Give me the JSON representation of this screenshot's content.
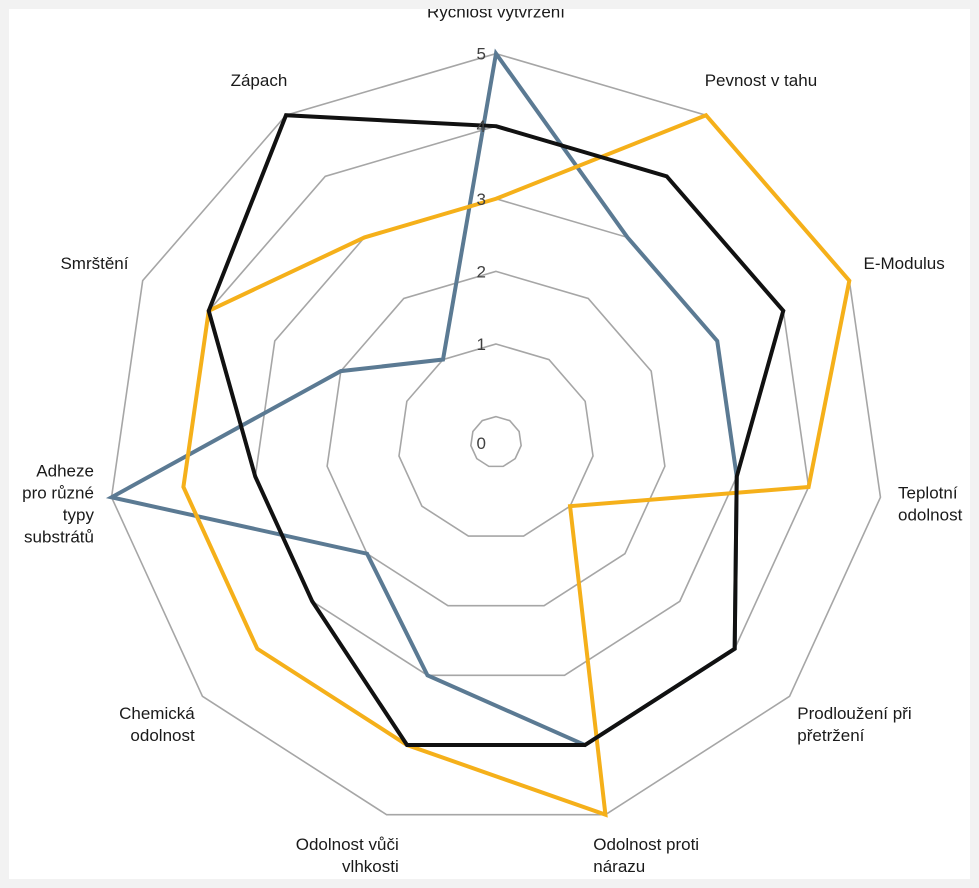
{
  "chart_data": {
    "type": "radar",
    "title": "",
    "axes": [
      "Rychlost vytvrzení",
      "Pevnost v tahu",
      "E-Modulus",
      "Teplotní odolnost",
      "Prodloužení při přetržení",
      "Odolnost proti nárazu",
      "Odolnost vůči vlhkosti",
      "Chemická odolnost",
      "Adheze pro různé typy substrátů",
      "Smrštění",
      "Zápach"
    ],
    "axis_label_lines": [
      [
        "Rychlost vytvrzení"
      ],
      [
        "Pevnost v tahu"
      ],
      [
        "E-Modulus"
      ],
      [
        "Teplotní",
        "odolnost"
      ],
      [
        "Prodloužení při",
        "přetržení"
      ],
      [
        "Odolnost proti",
        "nárazu"
      ],
      [
        "Odolnost vůči",
        "vlhkosti"
      ],
      [
        "Chemická",
        "odolnost"
      ],
      [
        "Adheze",
        "pro různé",
        "typy",
        "substrátů"
      ],
      [
        "Smrštění"
      ],
      [
        "Zápach"
      ]
    ],
    "rlim": [
      0,
      5
    ],
    "ticks": [
      "0",
      "1",
      "2",
      "3",
      "4",
      "5"
    ],
    "grid": true,
    "legend": "none",
    "series": [
      {
        "color": "#5b7a93",
        "values": [
          5,
          3,
          3,
          3,
          4,
          4,
          3,
          2,
          5,
          2,
          1
        ]
      },
      {
        "color": "#f5b01a",
        "values": [
          3,
          5,
          5,
          4,
          1,
          5,
          4,
          4,
          4,
          4,
          3
        ]
      },
      {
        "color": "#111111",
        "values": [
          4,
          4,
          4,
          3,
          4,
          4,
          4,
          3,
          3,
          4,
          5
        ]
      }
    ]
  }
}
